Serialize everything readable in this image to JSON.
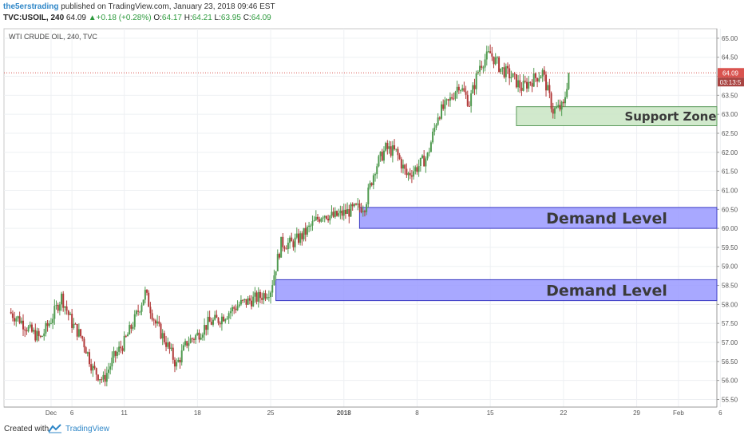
{
  "header": {
    "author": "the5erstrading",
    "published_text": " published on TradingView.com, January 23, 2018 09:46 EST",
    "symbol": "TVC:USOIL, 240",
    "last": "64.09",
    "change": "+0.18 (+0.28%)",
    "o_label": "O:",
    "o_value": "64.17",
    "h_label": "H:",
    "h_value": "64.21",
    "l_label": "L:",
    "l_value": "63.95",
    "c_label": "C:",
    "c_value": "64.09"
  },
  "footer": {
    "created_label": "Created with",
    "brand": "TradingView"
  },
  "colors": {
    "up": "#4f9a4f",
    "down": "#b23a3a",
    "demand_fill": "#9999ff",
    "demand_stroke": "#3b3bc4",
    "support_fill": "#c9e5c3",
    "support_stroke": "#5a9a5a",
    "price_line": "#d9534f"
  },
  "chart_data": {
    "type": "candlestick",
    "title": "WTI CRUDE OIL, 240, TVC",
    "ylim": [
      55.3,
      65.25
    ],
    "y_ticks": [
      "55.50",
      "56.00",
      "56.50",
      "57.00",
      "57.50",
      "58.00",
      "58.50",
      "59.00",
      "59.50",
      "60.00",
      "60.50",
      "61.00",
      "61.50",
      "62.00",
      "62.50",
      "63.00",
      "63.50",
      "64.00",
      "64.50",
      "65.00"
    ],
    "x_ticks": [
      {
        "label": "Dec",
        "day": 4
      },
      {
        "label": "6",
        "day": 6
      },
      {
        "label": "11",
        "day": 11
      },
      {
        "label": "18",
        "day": 18
      },
      {
        "label": "25",
        "day": 25
      },
      {
        "label": "2018",
        "day": 32
      },
      {
        "label": "8",
        "day": 39
      },
      {
        "label": "15",
        "day": 46
      },
      {
        "label": "22",
        "day": 53
      },
      {
        "label": "29",
        "day": 60
      },
      {
        "label": "Feb",
        "day": 64
      },
      {
        "label": "6",
        "day": 68
      }
    ],
    "last_price": "64.09",
    "countdown": "03:13:5",
    "zones": [
      {
        "label": "Support Zone",
        "type": "support",
        "low": 62.7,
        "high": 63.2,
        "start_day": 48.5,
        "end_day": 70
      },
      {
        "label": "Demand Level",
        "type": "demand",
        "low": 60.0,
        "high": 60.55,
        "start_day": 33.5,
        "end_day": 70
      },
      {
        "label": "Demand Level",
        "type": "demand",
        "low": 58.1,
        "high": 58.65,
        "start_day": 25.5,
        "end_day": 70
      }
    ],
    "closes": [
      [
        0,
        57.8
      ],
      [
        1,
        57.6
      ],
      [
        2,
        57.3
      ],
      [
        3,
        57.1
      ],
      [
        4,
        57.6
      ],
      [
        5,
        58.2
      ],
      [
        6,
        57.5
      ],
      [
        7,
        57.1
      ],
      [
        8,
        56.3
      ],
      [
        9,
        56.0
      ],
      [
        10,
        56.6
      ],
      [
        11,
        57.0
      ],
      [
        12,
        57.6
      ],
      [
        13,
        58.3
      ],
      [
        14,
        57.5
      ],
      [
        15,
        57.0
      ],
      [
        16,
        56.4
      ],
      [
        17,
        57.0
      ],
      [
        18,
        57.2
      ],
      [
        19,
        57.5
      ],
      [
        20,
        57.6
      ],
      [
        21,
        57.8
      ],
      [
        22,
        58.0
      ],
      [
        23,
        58.1
      ],
      [
        24,
        58.2
      ],
      [
        25,
        58.4
      ],
      [
        26,
        59.6
      ],
      [
        27,
        59.6
      ],
      [
        28,
        59.8
      ],
      [
        29,
        60.1
      ],
      [
        30,
        60.4
      ],
      [
        31,
        60.3
      ],
      [
        32,
        60.4
      ],
      [
        33,
        60.5
      ],
      [
        34,
        60.6
      ],
      [
        35,
        61.6
      ],
      [
        36,
        62.1
      ],
      [
        37,
        62.0
      ],
      [
        38,
        61.4
      ],
      [
        39,
        61.6
      ],
      [
        40,
        61.9
      ],
      [
        41,
        63.0
      ],
      [
        42,
        63.3
      ],
      [
        43,
        63.8
      ],
      [
        44,
        63.3
      ],
      [
        45,
        64.3
      ],
      [
        46,
        64.6
      ],
      [
        47,
        64.2
      ],
      [
        48,
        64.0
      ],
      [
        49,
        63.7
      ],
      [
        50,
        63.9
      ],
      [
        51,
        64.1
      ],
      [
        52,
        63.1
      ],
      [
        53,
        63.2
      ],
      [
        53.5,
        64.09
      ]
    ]
  }
}
